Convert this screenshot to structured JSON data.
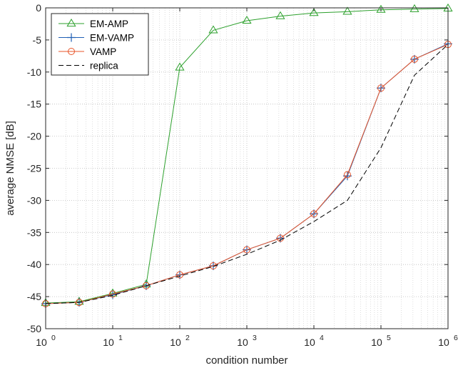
{
  "chart_data": {
    "type": "line",
    "title": "",
    "xlabel": "condition number",
    "ylabel": "average NMSE [dB]",
    "x_scale": "log",
    "xlim": [
      1,
      1000000
    ],
    "ylim": [
      -50,
      0
    ],
    "x_ticks": [
      1,
      10,
      100,
      1000,
      10000,
      100000,
      1000000
    ],
    "x_tick_base": "10",
    "x_tick_exps": [
      "0",
      "1",
      "2",
      "3",
      "4",
      "5",
      "6"
    ],
    "y_ticks": [
      0,
      -5,
      -10,
      -15,
      -20,
      -25,
      -30,
      -35,
      -40,
      -45,
      -50
    ],
    "y_tick_labels": [
      "0",
      "-5",
      "-10",
      "-15",
      "-20",
      "-25",
      "-30",
      "-35",
      "-40",
      "-45",
      "-50"
    ],
    "grid": true,
    "minor_grid": true,
    "legend_position": "top-left",
    "x": [
      1,
      3.16,
      10,
      31.6,
      100,
      316,
      1000,
      3160,
      10000,
      31600,
      100000,
      316000,
      1000000
    ],
    "series": [
      {
        "name": "EM-AMP",
        "color": "#2ca02c",
        "marker": "triangle",
        "line": "solid",
        "values": [
          -46.0,
          -45.8,
          -44.5,
          -43.1,
          -9.3,
          -3.5,
          -2.0,
          -1.3,
          -0.8,
          -0.6,
          -0.3,
          -0.2,
          -0.1
        ]
      },
      {
        "name": "EM-VAMP",
        "color": "#1f5fb4",
        "marker": "plus",
        "line": "solid",
        "values": [
          -46.1,
          -45.9,
          -44.7,
          -43.3,
          -41.6,
          -40.2,
          -37.7,
          -35.9,
          -32.1,
          -26.2,
          -12.5,
          -8.0,
          -5.6
        ]
      },
      {
        "name": "VAMP",
        "color": "#e8552a",
        "marker": "circle",
        "line": "solid",
        "values": [
          -46.1,
          -45.9,
          -44.6,
          -43.3,
          -41.6,
          -40.2,
          -37.7,
          -35.9,
          -32.1,
          -26.0,
          -12.5,
          -8.0,
          -5.7
        ]
      },
      {
        "name": "replica",
        "color": "#000000",
        "marker": "none",
        "line": "dashed",
        "values": [
          -46.1,
          -45.9,
          -44.8,
          -43.3,
          -41.8,
          -40.3,
          -38.4,
          -36.2,
          -33.3,
          -30.0,
          -21.8,
          -10.5,
          -5.7
        ]
      }
    ]
  }
}
